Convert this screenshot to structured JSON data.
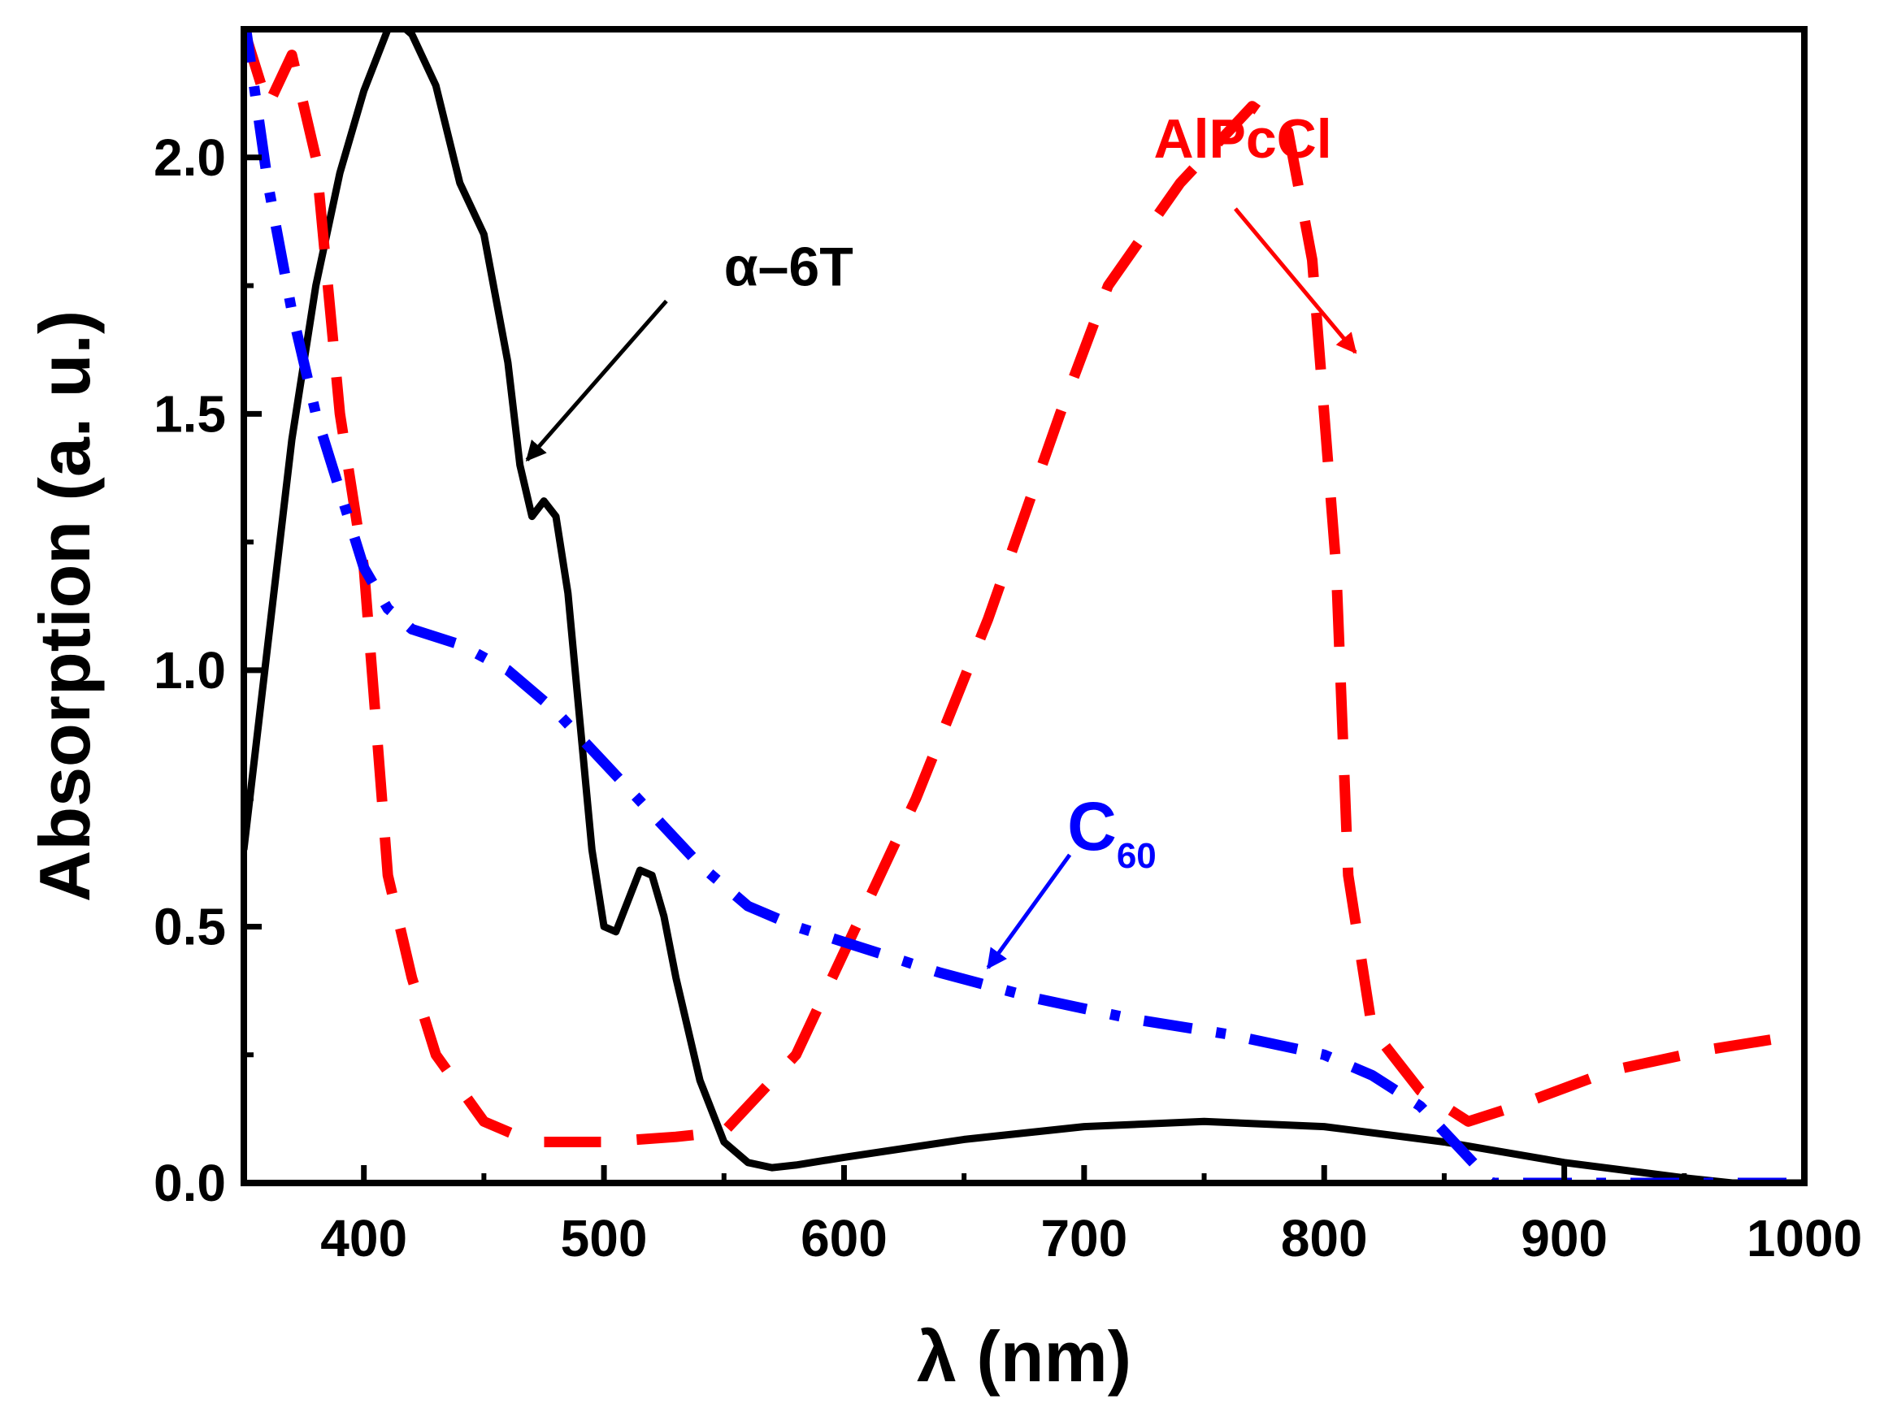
{
  "chart_data": {
    "type": "line",
    "xlabel": "λ (nm)",
    "ylabel": "Absorption (a. u.)",
    "xlim": [
      350,
      1000
    ],
    "ylim": [
      0,
      2.25
    ],
    "x_ticks": [
      400,
      500,
      600,
      700,
      800,
      900,
      1000
    ],
    "y_ticks": [
      0.0,
      0.5,
      1.0,
      1.5,
      2.0
    ],
    "x_tick_labels": [
      "400",
      "500",
      "600",
      "700",
      "800",
      "900",
      "1000"
    ],
    "y_tick_labels": [
      "0.0",
      "0.5",
      "1.0",
      "1.5",
      "2.0"
    ],
    "grid": false,
    "series": [
      {
        "name": "α–6T",
        "color": "#000000",
        "style": "solid",
        "points": [
          [
            350,
            0.65
          ],
          [
            360,
            1.05
          ],
          [
            370,
            1.45
          ],
          [
            380,
            1.75
          ],
          [
            390,
            1.97
          ],
          [
            400,
            2.13
          ],
          [
            410,
            2.25
          ],
          [
            415,
            2.26
          ],
          [
            420,
            2.24
          ],
          [
            430,
            2.14
          ],
          [
            440,
            1.95
          ],
          [
            450,
            1.85
          ],
          [
            460,
            1.6
          ],
          [
            465,
            1.4
          ],
          [
            470,
            1.3
          ],
          [
            475,
            1.33
          ],
          [
            480,
            1.3
          ],
          [
            485,
            1.15
          ],
          [
            490,
            0.9
          ],
          [
            495,
            0.65
          ],
          [
            500,
            0.5
          ],
          [
            505,
            0.49
          ],
          [
            510,
            0.55
          ],
          [
            515,
            0.61
          ],
          [
            520,
            0.6
          ],
          [
            525,
            0.52
          ],
          [
            530,
            0.4
          ],
          [
            540,
            0.2
          ],
          [
            550,
            0.08
          ],
          [
            560,
            0.04
          ],
          [
            570,
            0.03
          ],
          [
            580,
            0.035
          ],
          [
            600,
            0.05
          ],
          [
            650,
            0.085
          ],
          [
            700,
            0.11
          ],
          [
            750,
            0.12
          ],
          [
            800,
            0.11
          ],
          [
            850,
            0.08
          ],
          [
            900,
            0.04
          ],
          [
            950,
            0.01
          ],
          [
            970,
            0.0
          ],
          [
            1000,
            0.0
          ]
        ]
      },
      {
        "name": "AlPcCl",
        "color": "#ff0000",
        "style": "dashed",
        "points": [
          [
            350,
            2.25
          ],
          [
            360,
            2.1
          ],
          [
            370,
            2.2
          ],
          [
            380,
            2.0
          ],
          [
            390,
            1.5
          ],
          [
            400,
            1.2
          ],
          [
            405,
            0.9
          ],
          [
            410,
            0.6
          ],
          [
            420,
            0.4
          ],
          [
            430,
            0.25
          ],
          [
            450,
            0.12
          ],
          [
            470,
            0.08
          ],
          [
            500,
            0.08
          ],
          [
            530,
            0.09
          ],
          [
            550,
            0.1
          ],
          [
            580,
            0.25
          ],
          [
            600,
            0.45
          ],
          [
            630,
            0.75
          ],
          [
            660,
            1.1
          ],
          [
            690,
            1.5
          ],
          [
            710,
            1.75
          ],
          [
            740,
            1.95
          ],
          [
            770,
            2.1
          ],
          [
            785,
            2.05
          ],
          [
            795,
            1.8
          ],
          [
            805,
            1.2
          ],
          [
            810,
            0.6
          ],
          [
            820,
            0.3
          ],
          [
            840,
            0.18
          ],
          [
            860,
            0.12
          ],
          [
            880,
            0.15
          ],
          [
            920,
            0.22
          ],
          [
            960,
            0.26
          ],
          [
            1000,
            0.29
          ]
        ]
      },
      {
        "name": "C₆₀",
        "color": "#0000ff",
        "style": "dashdot",
        "points": [
          [
            350,
            2.28
          ],
          [
            360,
            1.95
          ],
          [
            370,
            1.7
          ],
          [
            380,
            1.5
          ],
          [
            390,
            1.35
          ],
          [
            400,
            1.2
          ],
          [
            410,
            1.12
          ],
          [
            420,
            1.08
          ],
          [
            440,
            1.05
          ],
          [
            460,
            1.0
          ],
          [
            480,
            0.92
          ],
          [
            500,
            0.82
          ],
          [
            520,
            0.72
          ],
          [
            540,
            0.62
          ],
          [
            560,
            0.54
          ],
          [
            580,
            0.5
          ],
          [
            600,
            0.47
          ],
          [
            640,
            0.41
          ],
          [
            680,
            0.36
          ],
          [
            720,
            0.32
          ],
          [
            760,
            0.29
          ],
          [
            800,
            0.25
          ],
          [
            820,
            0.21
          ],
          [
            840,
            0.15
          ],
          [
            860,
            0.05
          ],
          [
            870,
            0.0
          ],
          [
            1000,
            0.0
          ]
        ]
      }
    ],
    "annotations": [
      {
        "label": "AlPcCl",
        "color": "#ff0000",
        "text_at": [
          729,
          2.0
        ],
        "arrow_from": [
          763,
          1.9
        ],
        "arrow_to": [
          813,
          1.62
        ]
      },
      {
        "label": "α–6T",
        "color": "#000000",
        "text_at": [
          550,
          1.75
        ],
        "arrow_from": [
          526,
          1.72
        ],
        "arrow_to": [
          468,
          1.41
        ]
      },
      {
        "label": "C",
        "subscript": "60",
        "color": "#0000ff",
        "text_at": [
          693,
          0.65
        ],
        "arrow_from": [
          694,
          0.64
        ],
        "arrow_to": [
          660,
          0.42
        ]
      }
    ]
  }
}
